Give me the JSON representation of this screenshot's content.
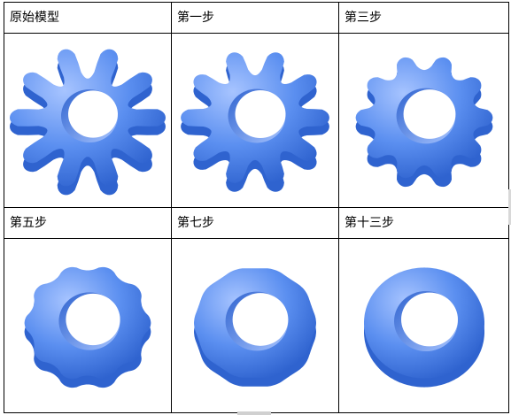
{
  "table": {
    "cells": [
      {
        "label": "原始模型",
        "icon": "gear-model-icon",
        "teeth": 10,
        "smooth": 0.0
      },
      {
        "label": "第一步",
        "icon": "gear-model-icon",
        "teeth": 10,
        "smooth": 0.12
      },
      {
        "label": "第三步",
        "icon": "gear-model-icon",
        "teeth": 10,
        "smooth": 0.35
      },
      {
        "label": "第五步",
        "icon": "gear-model-icon",
        "teeth": 10,
        "smooth": 0.65
      },
      {
        "label": "第七步",
        "icon": "gear-model-icon",
        "teeth": 10,
        "smooth": 0.85
      },
      {
        "label": "第十三步",
        "icon": "torus-model-icon",
        "teeth": 10,
        "smooth": 1.0
      }
    ]
  },
  "colors": {
    "model_fill": "#5b8ff0",
    "model_dark": "#2f63cf",
    "model_light": "#a7c4ff",
    "border": "#000000"
  }
}
